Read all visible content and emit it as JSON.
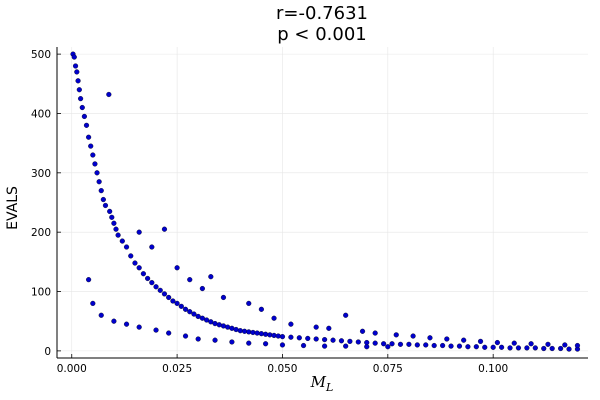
{
  "chart_data": {
    "type": "scatter",
    "title_line1": "r=-0.7631",
    "title_line2": "p < 0.001",
    "xlabel_main": "M",
    "xlabel_sub": "L",
    "ylabel": "EVALS",
    "xlim": [
      -0.0035,
      0.1225
    ],
    "ylim": [
      -12,
      512
    ],
    "xticks": [
      0.0,
      0.025,
      0.05,
      0.075,
      0.1
    ],
    "xtick_labels": [
      "0.000",
      "0.025",
      "0.050",
      "0.075",
      "0.100"
    ],
    "yticks": [
      0,
      100,
      200,
      300,
      400,
      500
    ],
    "ytick_labels": [
      "0",
      "100",
      "200",
      "300",
      "400",
      "500"
    ],
    "grid": true,
    "legend": "none",
    "marker_color": "#0000cc",
    "marker_edge": "#000000",
    "series": [
      {
        "values": [
          [
            0.0003,
            500
          ],
          [
            0.0006,
            495
          ],
          [
            0.0009,
            480
          ],
          [
            0.0012,
            470
          ],
          [
            0.0015,
            455
          ],
          [
            0.0018,
            440
          ],
          [
            0.0021,
            425
          ],
          [
            0.0025,
            410
          ],
          [
            0.003,
            395
          ],
          [
            0.0035,
            380
          ],
          [
            0.004,
            360
          ],
          [
            0.0045,
            345
          ],
          [
            0.005,
            330
          ],
          [
            0.0055,
            315
          ],
          [
            0.006,
            300
          ],
          [
            0.0065,
            285
          ],
          [
            0.007,
            270
          ],
          [
            0.0075,
            255
          ],
          [
            0.008,
            245
          ],
          [
            0.0088,
            432
          ],
          [
            0.009,
            235
          ],
          [
            0.0095,
            225
          ],
          [
            0.01,
            215
          ],
          [
            0.0105,
            205
          ],
          [
            0.011,
            195
          ],
          [
            0.012,
            185
          ],
          [
            0.013,
            175
          ],
          [
            0.014,
            160
          ],
          [
            0.015,
            148
          ],
          [
            0.016,
            140
          ],
          [
            0.017,
            130
          ],
          [
            0.018,
            122
          ],
          [
            0.019,
            115
          ],
          [
            0.02,
            108
          ],
          [
            0.021,
            102
          ],
          [
            0.022,
            96
          ],
          [
            0.023,
            90
          ],
          [
            0.024,
            84
          ],
          [
            0.025,
            80
          ],
          [
            0.026,
            75
          ],
          [
            0.027,
            70
          ],
          [
            0.028,
            66
          ],
          [
            0.029,
            62
          ],
          [
            0.03,
            58
          ],
          [
            0.031,
            55
          ],
          [
            0.032,
            52
          ],
          [
            0.033,
            49
          ],
          [
            0.034,
            46
          ],
          [
            0.035,
            44
          ],
          [
            0.036,
            42
          ],
          [
            0.037,
            40
          ],
          [
            0.038,
            38
          ],
          [
            0.039,
            36
          ],
          [
            0.04,
            34
          ],
          [
            0.041,
            33
          ],
          [
            0.042,
            32
          ],
          [
            0.043,
            31
          ],
          [
            0.044,
            30
          ],
          [
            0.045,
            29
          ],
          [
            0.046,
            28
          ],
          [
            0.047,
            27
          ],
          [
            0.048,
            26
          ],
          [
            0.049,
            25
          ],
          [
            0.05,
            24
          ],
          [
            0.052,
            23
          ],
          [
            0.054,
            22
          ],
          [
            0.056,
            21
          ],
          [
            0.058,
            20
          ],
          [
            0.06,
            19
          ],
          [
            0.062,
            18
          ],
          [
            0.064,
            17
          ],
          [
            0.066,
            16
          ],
          [
            0.068,
            15
          ],
          [
            0.07,
            14
          ],
          [
            0.072,
            13
          ],
          [
            0.074,
            12
          ],
          [
            0.076,
            12
          ],
          [
            0.078,
            11
          ],
          [
            0.08,
            11
          ],
          [
            0.082,
            10
          ],
          [
            0.084,
            10
          ],
          [
            0.086,
            9
          ],
          [
            0.088,
            9
          ],
          [
            0.09,
            8
          ],
          [
            0.092,
            8
          ],
          [
            0.094,
            7
          ],
          [
            0.096,
            7
          ],
          [
            0.098,
            6
          ],
          [
            0.1,
            6
          ],
          [
            0.102,
            6
          ],
          [
            0.104,
            5
          ],
          [
            0.106,
            5
          ],
          [
            0.108,
            5
          ],
          [
            0.11,
            5
          ],
          [
            0.112,
            4
          ],
          [
            0.114,
            4
          ],
          [
            0.116,
            4
          ],
          [
            0.118,
            3
          ],
          [
            0.12,
            3
          ],
          [
            0.004,
            120
          ],
          [
            0.005,
            80
          ],
          [
            0.007,
            60
          ],
          [
            0.01,
            50
          ],
          [
            0.013,
            45
          ],
          [
            0.016,
            40
          ],
          [
            0.02,
            35
          ],
          [
            0.023,
            30
          ],
          [
            0.027,
            25
          ],
          [
            0.03,
            20
          ],
          [
            0.034,
            18
          ],
          [
            0.038,
            15
          ],
          [
            0.042,
            13
          ],
          [
            0.046,
            12
          ],
          [
            0.05,
            10
          ],
          [
            0.055,
            9
          ],
          [
            0.06,
            8
          ],
          [
            0.065,
            8
          ],
          [
            0.07,
            7
          ],
          [
            0.075,
            7
          ],
          [
            0.016,
            200
          ],
          [
            0.019,
            175
          ],
          [
            0.022,
            205
          ],
          [
            0.025,
            140
          ],
          [
            0.028,
            120
          ],
          [
            0.031,
            105
          ],
          [
            0.033,
            125
          ],
          [
            0.036,
            90
          ],
          [
            0.042,
            80
          ],
          [
            0.045,
            70
          ],
          [
            0.048,
            55
          ],
          [
            0.052,
            45
          ],
          [
            0.058,
            40
          ],
          [
            0.061,
            38
          ],
          [
            0.065,
            60
          ],
          [
            0.069,
            33
          ],
          [
            0.072,
            30
          ],
          [
            0.077,
            27
          ],
          [
            0.081,
            25
          ],
          [
            0.085,
            22
          ],
          [
            0.089,
            20
          ],
          [
            0.093,
            18
          ],
          [
            0.097,
            16
          ],
          [
            0.101,
            14
          ],
          [
            0.105,
            13
          ],
          [
            0.109,
            12
          ],
          [
            0.113,
            11
          ],
          [
            0.117,
            10
          ],
          [
            0.12,
            9
          ]
        ]
      }
    ]
  }
}
